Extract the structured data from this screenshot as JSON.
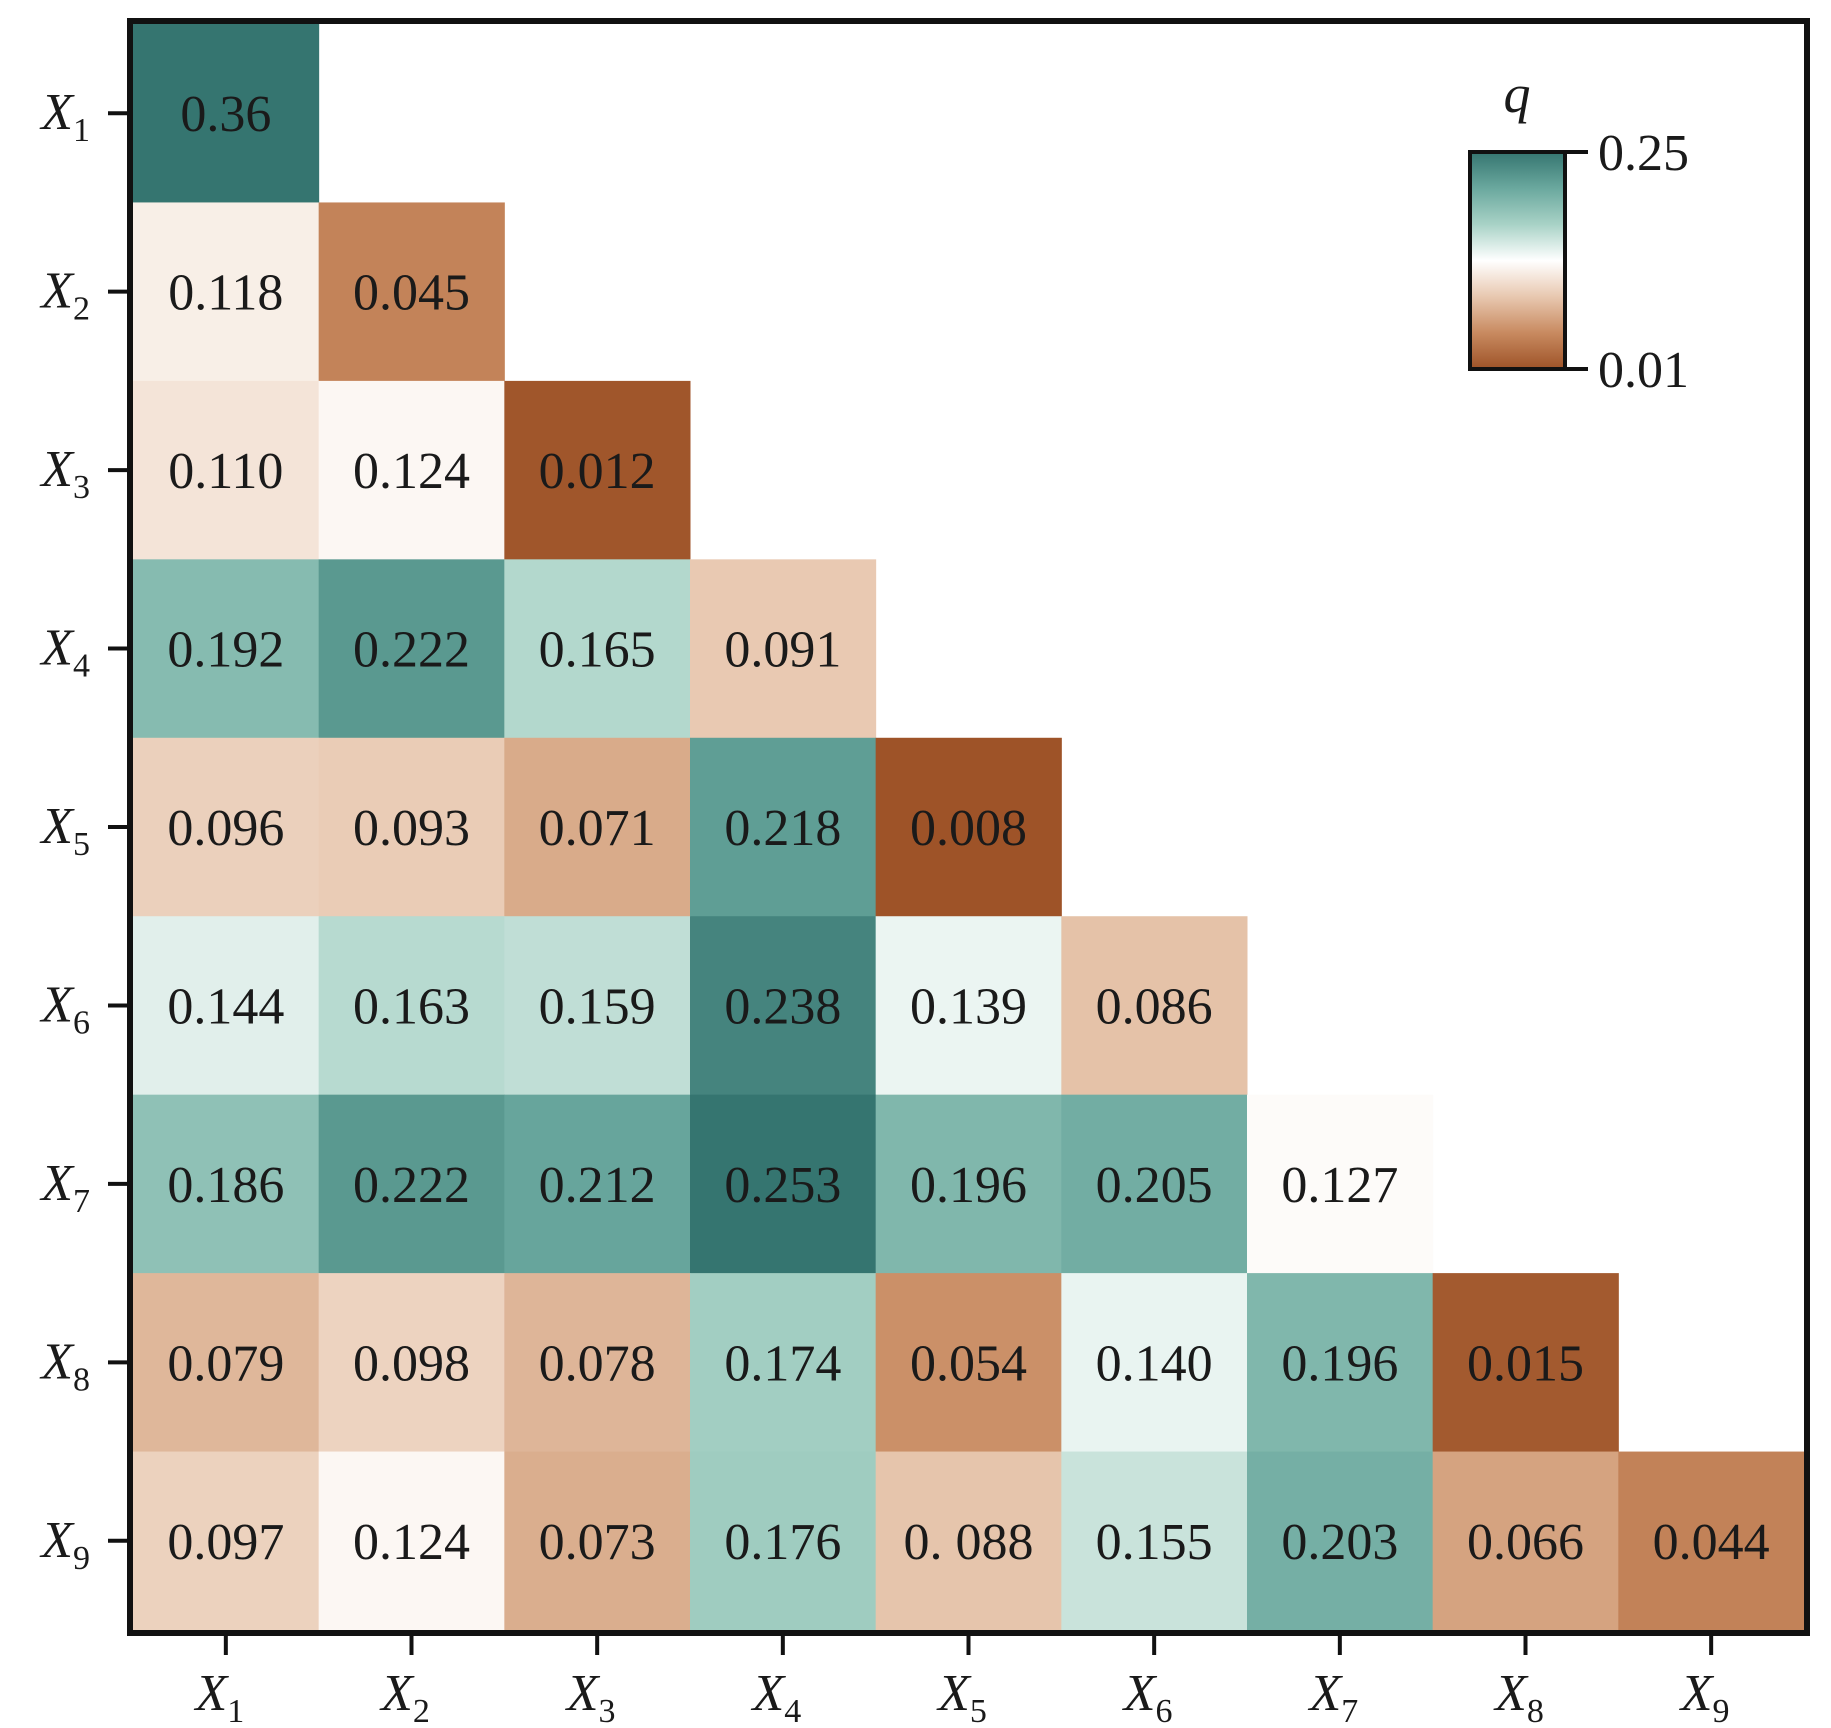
{
  "chart_data": {
    "type": "heatmap",
    "title": "",
    "xlabel": "",
    "ylabel": "",
    "rows": [
      "X1",
      "X2",
      "X3",
      "X4",
      "X5",
      "X6",
      "X7",
      "X8",
      "X9"
    ],
    "columns": [
      "X1",
      "X2",
      "X3",
      "X4",
      "X5",
      "X6",
      "X7",
      "X8",
      "X9"
    ],
    "tick_labels": [
      {
        "base": "X",
        "sub": "1"
      },
      {
        "base": "X",
        "sub": "2"
      },
      {
        "base": "X",
        "sub": "3"
      },
      {
        "base": "X",
        "sub": "4"
      },
      {
        "base": "X",
        "sub": "5"
      },
      {
        "base": "X",
        "sub": "6"
      },
      {
        "base": "X",
        "sub": "7"
      },
      {
        "base": "X",
        "sub": "8"
      },
      {
        "base": "X",
        "sub": "9"
      }
    ],
    "matrix_shape": "lower-triangular",
    "values": [
      [
        0.36
      ],
      [
        0.118,
        0.045
      ],
      [
        0.11,
        0.124,
        0.012
      ],
      [
        0.192,
        0.222,
        0.165,
        0.091
      ],
      [
        0.096,
        0.093,
        0.071,
        0.218,
        0.008
      ],
      [
        0.144,
        0.163,
        0.159,
        0.238,
        0.139,
        0.086
      ],
      [
        0.186,
        0.222,
        0.212,
        0.253,
        0.196,
        0.205,
        0.127
      ],
      [
        0.079,
        0.098,
        0.078,
        0.174,
        0.054,
        0.14,
        0.196,
        0.015
      ],
      [
        0.097,
        0.124,
        0.073,
        0.176,
        0.088,
        0.155,
        0.203,
        0.066,
        0.044
      ]
    ],
    "value_labels": [
      [
        "0.36"
      ],
      [
        "0.118",
        "0.045"
      ],
      [
        "0.110",
        "0.124",
        "0.012"
      ],
      [
        "0.192",
        "0.222",
        "0.165",
        "0.091"
      ],
      [
        "0.096",
        "0.093",
        "0.071",
        "0.218",
        "0.008"
      ],
      [
        "0.144",
        "0.163",
        "0.159",
        "0.238",
        "0.139",
        "0.086"
      ],
      [
        "0.186",
        "0.222",
        "0.212",
        "0.253",
        "0.196",
        "0.205",
        "0.127"
      ],
      [
        "0.079",
        "0.098",
        "0.078",
        "0.174",
        "0.054",
        "0.140",
        "0.196",
        "0.015"
      ],
      [
        "0.097",
        "0.124",
        "0.073",
        "0.176",
        "0. 088",
        "0.155",
        "0.203",
        "0.066",
        "0.044"
      ]
    ],
    "colorbar": {
      "title": "q",
      "min": 0.01,
      "max": 0.25,
      "min_label": "0.01",
      "max_label": "0.25",
      "placement": "top-right",
      "colors": [
        "#9e5328",
        "#c88a60",
        "#e8c8b0",
        "#ffffff",
        "#a8d2c6",
        "#6aa89e",
        "#357570"
      ]
    },
    "grid": false
  }
}
